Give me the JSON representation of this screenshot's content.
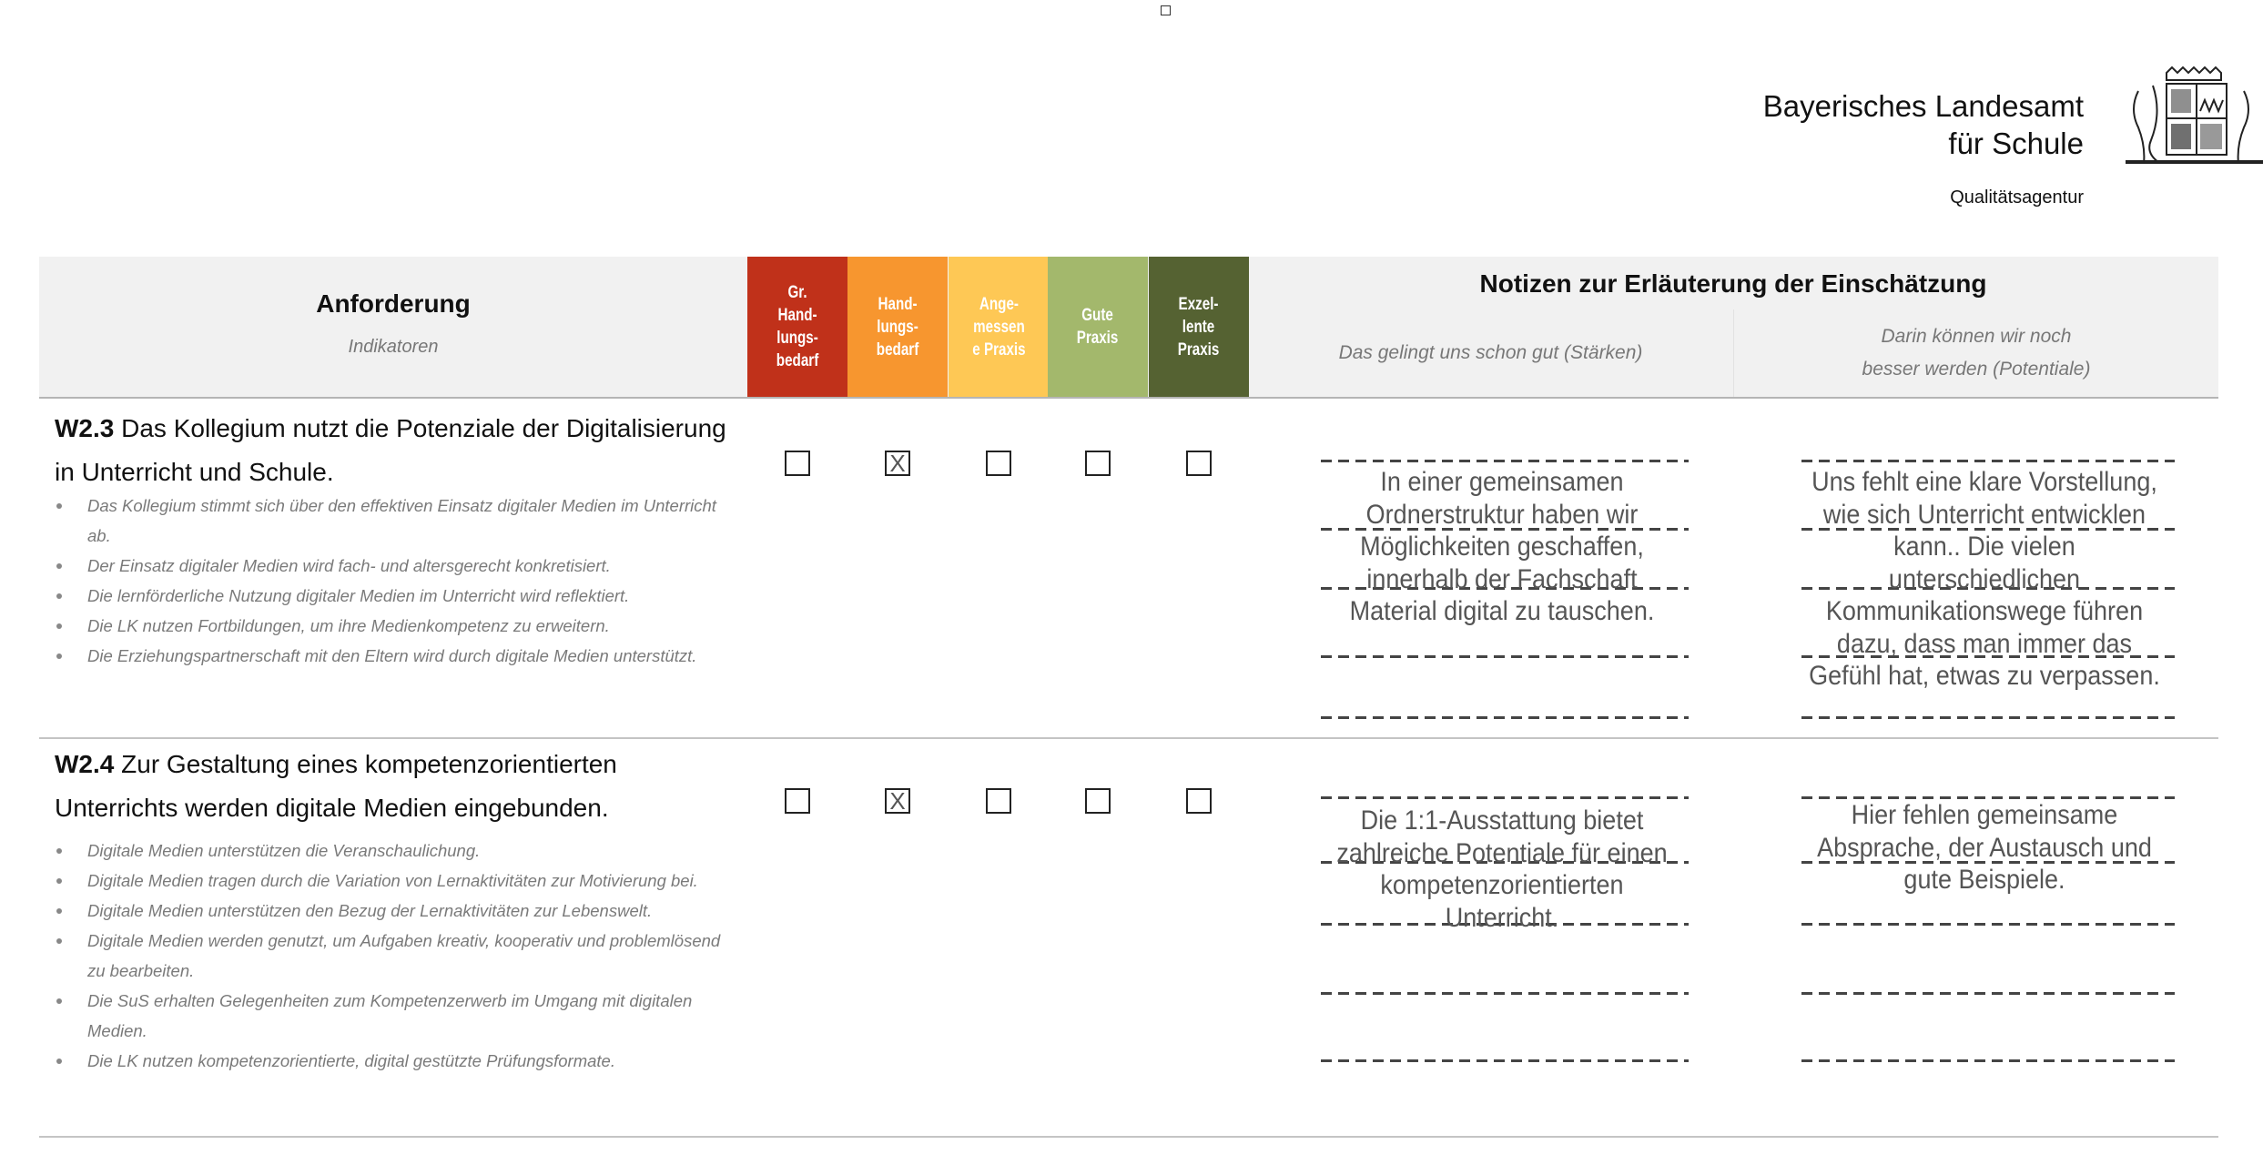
{
  "header": {
    "org_line1": "Bayerisches Landesamt",
    "org_line2": "für Schule",
    "agency": "Qualitätsagentur",
    "logo_icon": "bavarian-coat-of-arms"
  },
  "table": {
    "requirement_title": "Anforderung",
    "requirement_subtitle": "Indikatoren",
    "ratings": [
      {
        "label": "Gr. Hand- lungs- bedarf",
        "lines": [
          "Gr.",
          "Hand-",
          "lungs-",
          "bedarf"
        ],
        "color": "#c0311a"
      },
      {
        "label": "Hand- lungs- bedarf",
        "lines": [
          "Hand-",
          "lungs-",
          "bedarf"
        ],
        "color": "#f7962f"
      },
      {
        "label": "Ange- messen e Praxis",
        "lines": [
          "Ange-",
          "messen",
          "e Praxis"
        ],
        "color": "#fec855"
      },
      {
        "label": "Gute Praxis",
        "lines": [
          "Gute",
          "Praxis"
        ],
        "color": "#a3b86c"
      },
      {
        "label": "Exzel- lente Praxis",
        "lines": [
          "Exzel-",
          "lente",
          "Praxis"
        ],
        "color": "#556232"
      }
    ],
    "notes_title": "Notizen zur Erläuterung der Einschätzung",
    "notes_strengths": "Das gelingt uns schon gut (Stärken)",
    "notes_potentials": "Darin können wir noch besser werden (Potentiale)",
    "rows": [
      {
        "code": "W2.3",
        "title": "Das Kollegium nutzt die Potenziale der Digitalisierung in Unterricht und Schule.",
        "indicators": [
          "Das Kollegium stimmt sich über den effektiven Einsatz digitaler Medien im Unterricht ab.",
          "Der Einsatz digitaler Medien wird fach- und altersgerecht konkretisiert.",
          "Die lernförderliche Nutzung digitaler Medien im Unterricht wird reflektiert.",
          "Die LK nutzen Fortbildungen, um ihre Medienkompetenz zu erweitern.",
          "Die Erziehungspartnerschaft mit den Eltern wird durch digitale Medien unterstützt."
        ],
        "checks": [
          "",
          "X",
          "",
          "",
          ""
        ],
        "selected_rating": "Hand- lungs- bedarf",
        "strengths": "In einer gemeinsamen Ordnerstruktur haben wir Möglichkeiten geschaffen, innerhalb der Fachschaft Material digital zu tauschen.",
        "potentials": "Uns fehlt eine klare Vorstellung, wie sich Unterricht entwicklen kann.. Die vielen unterschiedlichen Kommunikationswege führen dazu, dass man immer das Gefühl hat, etwas zu verpassen."
      },
      {
        "code": "W2.4",
        "title": "Zur Gestaltung eines kompetenzorientierten Unterrichts werden digitale Medien eingebunden.",
        "indicators": [
          "Digitale Medien unterstützen die Veranschaulichung.",
          "Digitale Medien tragen durch die Variation von Lernaktivitäten zur Motivierung bei.",
          "Digitale Medien unterstützen den Bezug der Lernaktivitäten zur Lebenswelt.",
          "Digitale Medien werden genutzt, um Aufgaben kreativ, kooperativ und problemlösend zu bearbeiten.",
          "Die SuS erhalten Gelegenheiten zum Kompetenzerwerb im Umgang mit digitalen Medien.",
          "Die LK nutzen kompetenzorientierte, digital gestützte Prüfungsformate."
        ],
        "checks": [
          "",
          "X",
          "",
          "",
          ""
        ],
        "selected_rating": "Hand- lungs- bedarf",
        "strengths": "Die 1:1-Ausstattung bietet zahlreiche Potentiale für einen kompetenzorientierten Unterricht.",
        "potentials": "Hier fehlen gemeinsame Absprache, der Austausch und gute Beispiele."
      }
    ]
  }
}
